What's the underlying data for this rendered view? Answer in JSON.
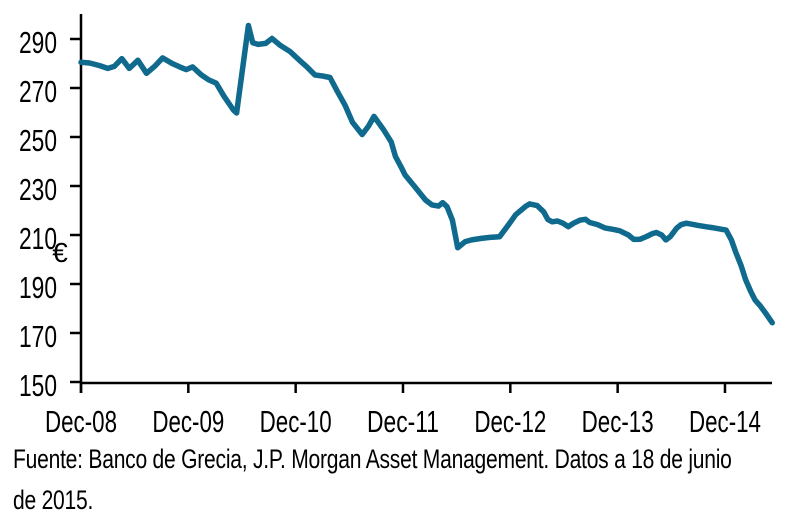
{
  "page": {
    "background": "#ffffff"
  },
  "chart_data": {
    "type": "line",
    "title": "",
    "unit_label": "€",
    "legend": "none",
    "grid": "off",
    "axis_color": "#000000",
    "line_color": "#0f6a8e",
    "x_tick_labels": [
      "Dec-08",
      "Dec-09",
      "Dec-10",
      "Dec-11",
      "Dec-12",
      "Dec-13",
      "Dec-14"
    ],
    "y_ticks": [
      150,
      170,
      190,
      210,
      230,
      250,
      270,
      290
    ],
    "ylim": [
      148,
      301
    ],
    "xlim_years_after_dec08": [
      0,
      6.44
    ],
    "points_year_value": [
      [
        0.0,
        280.5
      ],
      [
        0.08,
        280.2
      ],
      [
        0.17,
        279.2
      ],
      [
        0.25,
        278.0
      ],
      [
        0.31,
        278.8
      ],
      [
        0.38,
        282.0
      ],
      [
        0.45,
        278.0
      ],
      [
        0.53,
        281.3
      ],
      [
        0.61,
        276.0
      ],
      [
        0.69,
        279.0
      ],
      [
        0.76,
        282.3
      ],
      [
        0.85,
        280.0
      ],
      [
        0.92,
        278.6
      ],
      [
        0.98,
        277.5
      ],
      [
        1.04,
        278.6
      ],
      [
        1.12,
        275.4
      ],
      [
        1.19,
        273.3
      ],
      [
        1.26,
        272.0
      ],
      [
        1.33,
        266.8
      ],
      [
        1.42,
        261.0
      ],
      [
        1.45,
        259.8
      ],
      [
        1.56,
        295.5
      ],
      [
        1.6,
        288.5
      ],
      [
        1.65,
        287.8
      ],
      [
        1.72,
        288.2
      ],
      [
        1.78,
        290.2
      ],
      [
        1.86,
        287.3
      ],
      [
        1.95,
        284.8
      ],
      [
        2.03,
        281.5
      ],
      [
        2.1,
        278.8
      ],
      [
        2.18,
        275.3
      ],
      [
        2.25,
        274.9
      ],
      [
        2.32,
        274.3
      ],
      [
        2.39,
        268.5
      ],
      [
        2.46,
        263.0
      ],
      [
        2.53,
        256.0
      ],
      [
        2.62,
        251.0
      ],
      [
        2.68,
        254.5
      ],
      [
        2.73,
        258.4
      ],
      [
        2.82,
        252.9
      ],
      [
        2.89,
        248.0
      ],
      [
        2.93,
        242.0
      ],
      [
        2.98,
        238.0
      ],
      [
        3.02,
        234.5
      ],
      [
        3.11,
        229.7
      ],
      [
        3.21,
        224.3
      ],
      [
        3.27,
        222.3
      ],
      [
        3.33,
        221.8
      ],
      [
        3.37,
        223.2
      ],
      [
        3.41,
        221.6
      ],
      [
        3.46,
        216.1
      ],
      [
        3.51,
        204.8
      ],
      [
        3.58,
        207.3
      ],
      [
        3.64,
        208.0
      ],
      [
        3.73,
        208.6
      ],
      [
        3.81,
        209.0
      ],
      [
        3.9,
        209.3
      ],
      [
        3.98,
        214.0
      ],
      [
        4.05,
        218.3
      ],
      [
        4.14,
        221.6
      ],
      [
        4.18,
        222.7
      ],
      [
        4.25,
        222.0
      ],
      [
        4.31,
        219.5
      ],
      [
        4.35,
        216.3
      ],
      [
        4.39,
        215.4
      ],
      [
        4.44,
        215.7
      ],
      [
        4.49,
        214.8
      ],
      [
        4.54,
        213.4
      ],
      [
        4.59,
        214.8
      ],
      [
        4.65,
        216.1
      ],
      [
        4.7,
        216.4
      ],
      [
        4.74,
        215.1
      ],
      [
        4.81,
        214.3
      ],
      [
        4.88,
        212.9
      ],
      [
        4.96,
        212.3
      ],
      [
        5.02,
        211.7
      ],
      [
        5.1,
        210.0
      ],
      [
        5.15,
        208.2
      ],
      [
        5.21,
        208.3
      ],
      [
        5.27,
        209.4
      ],
      [
        5.32,
        210.5
      ],
      [
        5.36,
        211.0
      ],
      [
        5.41,
        210.0
      ],
      [
        5.45,
        208.0
      ],
      [
        5.49,
        209.3
      ],
      [
        5.55,
        212.8
      ],
      [
        5.59,
        214.2
      ],
      [
        5.64,
        214.8
      ],
      [
        5.69,
        214.4
      ],
      [
        5.75,
        213.9
      ],
      [
        5.82,
        213.4
      ],
      [
        5.88,
        213.0
      ],
      [
        5.95,
        212.5
      ],
      [
        6.01,
        212.0
      ],
      [
        6.06,
        208.0
      ],
      [
        6.1,
        203.0
      ],
      [
        6.15,
        197.5
      ],
      [
        6.19,
        192.0
      ],
      [
        6.24,
        187.0
      ],
      [
        6.28,
        183.5
      ],
      [
        6.33,
        181.0
      ],
      [
        6.38,
        178.0
      ],
      [
        6.44,
        174.2
      ]
    ]
  },
  "footer": {
    "lines": [
      "Fuente: Banco de Grecia, J.P. Morgan Asset Management. Datos a 18 de junio",
      "de 2015."
    ]
  }
}
